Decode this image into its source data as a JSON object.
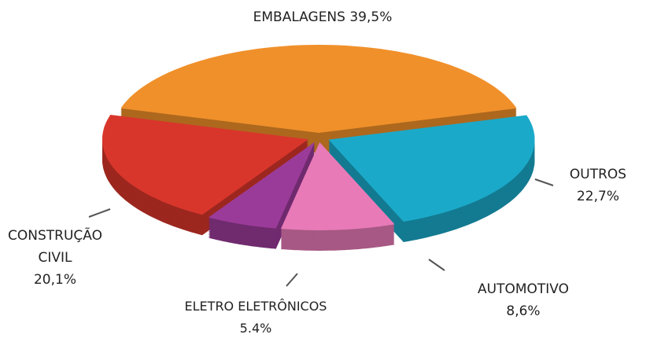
{
  "chart_data": {
    "type": "pie",
    "categories": [
      "EMBALAGENS",
      "OUTROS",
      "AUTOMOTIVO",
      "ELETRO ELETRÔNICOS",
      "CONSTRUÇÃO CIVIL"
    ],
    "values": [
      39.5,
      22.7,
      8.6,
      5.4,
      20.1
    ],
    "value_labels": [
      "39,5%",
      "22,7%",
      "8,6%",
      "5.4%",
      "20,1%"
    ],
    "colors": [
      "#f0902a",
      "#1ba9c9",
      "#e87ab8",
      "#9b3b99",
      "#d9362b"
    ]
  }
}
